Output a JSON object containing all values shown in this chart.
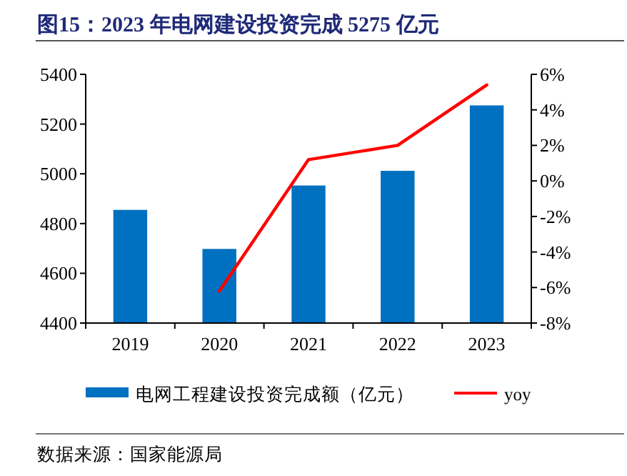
{
  "chart_data": {
    "type": "bar",
    "title": "图15：2023 年电网建设投资完成 5275 亿元",
    "categories": [
      "2019",
      "2020",
      "2021",
      "2022",
      "2023"
    ],
    "series": [
      {
        "name": "电网工程建设投资完成额（亿元）",
        "color": "#0070c0",
        "values": [
          4855,
          4698,
          4953,
          5012,
          5275
        ]
      },
      {
        "name": "yoy",
        "type": "line",
        "axis": "y2",
        "color": "#ff0000",
        "values": [
          null,
          -6.2,
          1.2,
          2.0,
          5.4
        ]
      }
    ],
    "ylim": [
      4400,
      5400
    ],
    "yticks": [
      4400,
      4600,
      4800,
      5000,
      5200,
      5400
    ],
    "y2lim": [
      -8,
      6
    ],
    "y2ticks": [
      {
        "value": -8,
        "label": "-8%"
      },
      {
        "value": -6,
        "label": "-6%"
      },
      {
        "value": -4,
        "label": "-4%"
      },
      {
        "value": -2,
        "label": "-2%"
      },
      {
        "value": 0,
        "label": "0%"
      },
      {
        "value": 2,
        "label": "2%"
      },
      {
        "value": 4,
        "label": "4%"
      },
      {
        "value": 6,
        "label": "6%"
      }
    ],
    "legend": "bottom",
    "grid": false,
    "annotations": [
      "数据来源：国家能源局"
    ]
  }
}
